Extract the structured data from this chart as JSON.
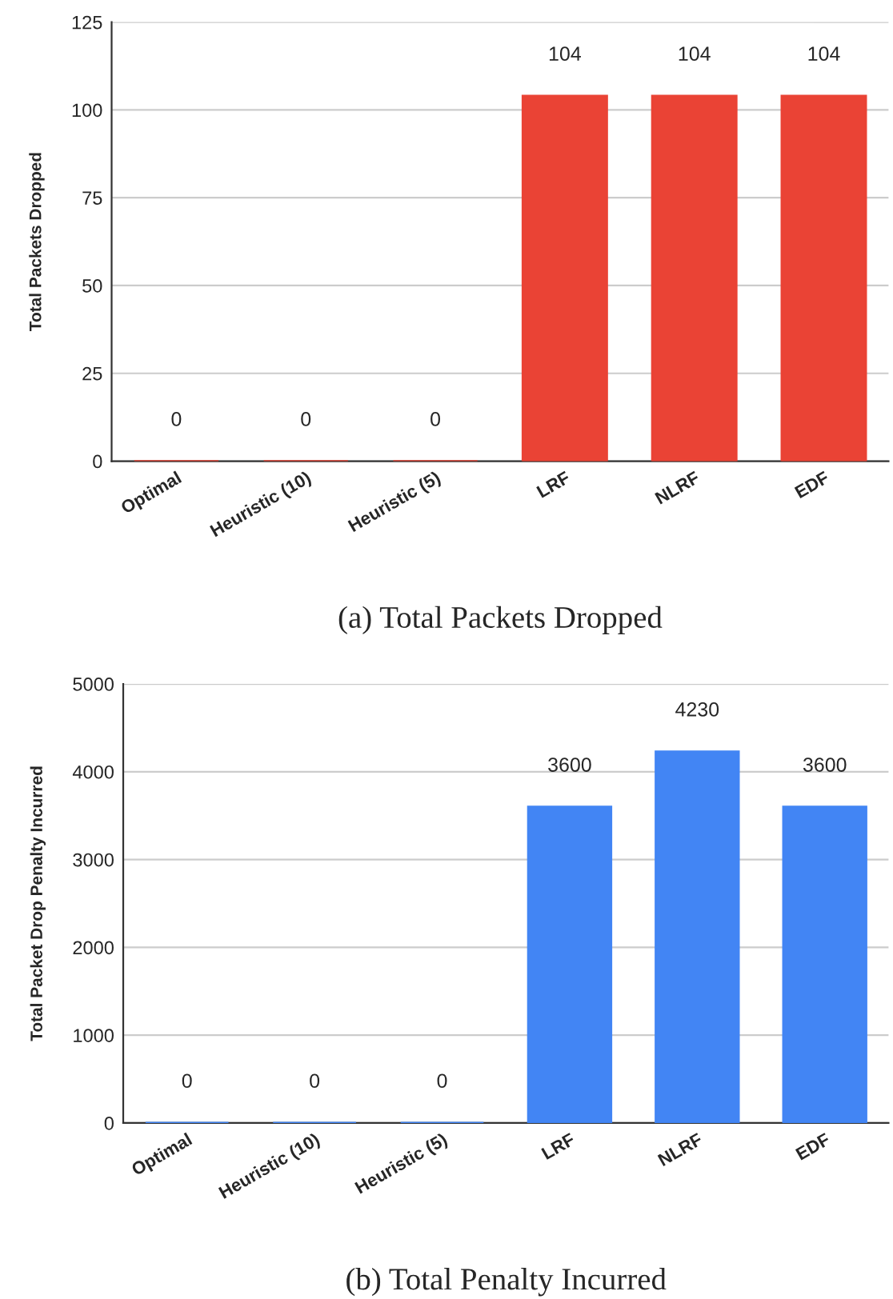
{
  "chart_data": [
    {
      "type": "bar",
      "categories": [
        "Optimal",
        "Heuristic (10)",
        "Heuristic (5)",
        "LRF",
        "NLRF",
        "EDF"
      ],
      "values": [
        0,
        0,
        0,
        104,
        104,
        104
      ],
      "color": "#ea4335",
      "ylabel": "Total Packets Dropped",
      "ylim": [
        0,
        125
      ],
      "yticks": [
        0,
        25,
        50,
        75,
        100,
        125
      ],
      "grid": "y",
      "data_labels": true,
      "annotations": [
        "(a) Total Packets Dropped"
      ]
    },
    {
      "type": "bar",
      "categories": [
        "Optimal",
        "Heuristic (10)",
        "Heuristic (5)",
        "LRF",
        "NLRF",
        "EDF"
      ],
      "values": [
        0,
        0,
        0,
        3600,
        4230,
        3600
      ],
      "color": "#4285f4",
      "ylabel": "Total Packet Drop Penalty Incurred",
      "ylim": [
        0,
        5000
      ],
      "yticks": [
        0,
        1000,
        2000,
        3000,
        4000,
        5000
      ],
      "grid": "y",
      "data_labels": true,
      "annotations": [
        "(b) Total Penalty Incurred"
      ]
    }
  ]
}
